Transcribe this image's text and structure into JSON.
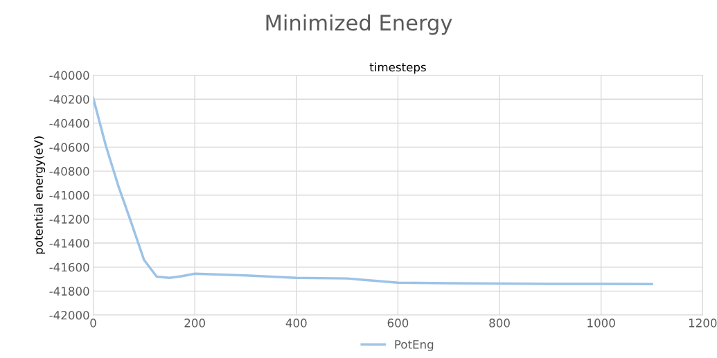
{
  "chart_data": {
    "type": "line",
    "title": "Minimized Energy",
    "xlabel": "timesteps",
    "ylabel": "potential energy(eV)",
    "x": [
      0,
      25,
      50,
      75,
      100,
      125,
      150,
      175,
      200,
      300,
      400,
      500,
      600,
      700,
      800,
      900,
      1000,
      1100
    ],
    "series": [
      {
        "name": "PotEng",
        "color": "#9dc3e6",
        "values": [
          -40190,
          -40590,
          -40930,
          -41230,
          -41540,
          -41680,
          -41690,
          -41675,
          -41655,
          -41670,
          -41690,
          -41695,
          -41730,
          -41735,
          -41738,
          -41740,
          -41740,
          -41742
        ]
      }
    ],
    "xlim": [
      0,
      1200
    ],
    "xticks": [
      0,
      200,
      400,
      600,
      800,
      1000,
      1200
    ],
    "ylim": [
      -42000,
      -40000
    ],
    "yticks": [
      -42000,
      -41800,
      -41600,
      -41400,
      -41200,
      -41000,
      -40800,
      -40600,
      -40400,
      -40200,
      -40000
    ],
    "grid": true,
    "legend": "bottom",
    "marker": "none",
    "line_style": "solid"
  }
}
